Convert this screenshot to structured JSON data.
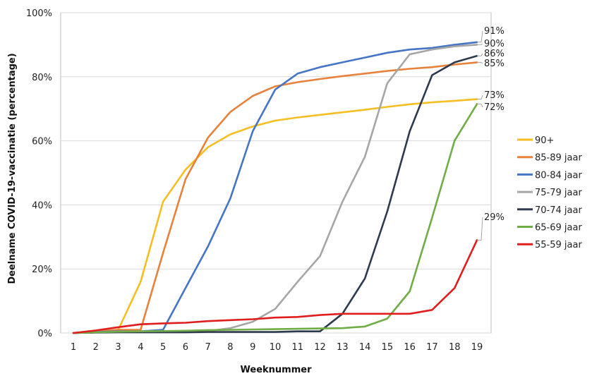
{
  "chart_data": {
    "type": "line",
    "title": "",
    "xlabel": "Weeknummer",
    "ylabel": "Deelname COVID-19-vaccinatie  (percentage)",
    "x": [
      1,
      2,
      3,
      4,
      5,
      6,
      7,
      8,
      9,
      10,
      11,
      12,
      13,
      14,
      15,
      16,
      17,
      18,
      19
    ],
    "ylim": [
      0,
      100
    ],
    "yticks": [
      0,
      20,
      40,
      60,
      80,
      100
    ],
    "ytick_labels": [
      "0%",
      "20%",
      "40%",
      "60%",
      "80%",
      "100%"
    ],
    "grid": "horizontal",
    "legend_position": "right",
    "series": [
      {
        "name": "90+",
        "color": "#F5BE22",
        "values": [
          0,
          0.5,
          1,
          16,
          41,
          51,
          58,
          62,
          64.5,
          66.3,
          67.3,
          68.1,
          68.9,
          69.7,
          70.6,
          71.4,
          72,
          72.5,
          73
        ],
        "end_label": "73%"
      },
      {
        "name": "85-89 jaar",
        "color": "#E8823B",
        "values": [
          0,
          0.5,
          1,
          1,
          25,
          48,
          61,
          69,
          74,
          77,
          78.3,
          79.3,
          80.2,
          81,
          81.8,
          82.5,
          83,
          83.8,
          84.5
        ],
        "end_label": "85%"
      },
      {
        "name": "80-84 jaar",
        "color": "#4575C4",
        "values": [
          0,
          0.3,
          0.5,
          0.5,
          1,
          14,
          27,
          42,
          63,
          76,
          81,
          83,
          84.5,
          86,
          87.5,
          88.5,
          89,
          90,
          90.8
        ],
        "end_label": "91%"
      },
      {
        "name": "75-79 jaar",
        "color": "#A6A6A6",
        "values": [
          0,
          0.2,
          0.3,
          0.4,
          0.5,
          0.5,
          0.6,
          1.5,
          3.5,
          7.5,
          16,
          24,
          41,
          55,
          78,
          87,
          88.5,
          89.5,
          90
        ],
        "end_label": "90%"
      },
      {
        "name": "70-74 jaar",
        "color": "#2E3A4D",
        "values": [
          0,
          0.1,
          0.2,
          0.2,
          0.2,
          0.2,
          0.3,
          0.3,
          0.3,
          0.3,
          0.5,
          0.5,
          6,
          17,
          38,
          63,
          80.5,
          84.5,
          86.5
        ],
        "end_label": "86%"
      },
      {
        "name": "65-69 jaar",
        "color": "#71AD47",
        "values": [
          0,
          0.2,
          0.4,
          0.5,
          0.6,
          0.7,
          0.9,
          1,
          1.1,
          1.2,
          1.3,
          1.4,
          1.5,
          2,
          4.5,
          13,
          36,
          60,
          71.5
        ],
        "end_label": "72%"
      },
      {
        "name": "55-59 jaar",
        "color": "#E01E1E",
        "values": [
          0,
          0.8,
          1.8,
          2.7,
          3,
          3.2,
          3.7,
          4,
          4.3,
          4.8,
          5,
          5.6,
          6,
          6,
          6,
          6,
          7.2,
          14,
          29
        ],
        "end_label": "29%"
      }
    ]
  }
}
